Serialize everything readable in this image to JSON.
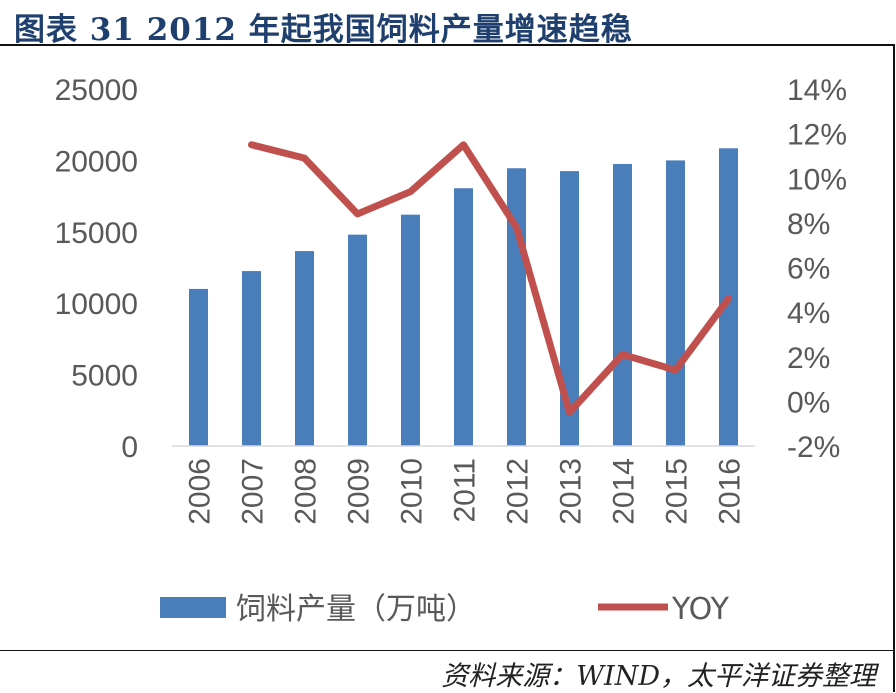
{
  "header": {
    "title": "图表 31 2012 年起我国饲料产量增速趋稳"
  },
  "footer": {
    "source": "资料来源：WIND，太平洋证券整理"
  },
  "chart_data": {
    "type": "bar+line",
    "title": "",
    "categories": [
      "2006",
      "2007",
      "2008",
      "2009",
      "2010",
      "2011",
      "2012",
      "2013",
      "2014",
      "2015",
      "2016"
    ],
    "series": [
      {
        "name": "饲料产量（万吨）",
        "type": "bar",
        "axis": "left",
        "color": "#4a7ebb",
        "values": [
          11000,
          12250,
          13650,
          14800,
          16200,
          18050,
          19450,
          19250,
          19750,
          20000,
          20850
        ]
      },
      {
        "name": "YOY",
        "type": "line",
        "axis": "right",
        "color": "#c0504d",
        "values": [
          null,
          11.5,
          10.9,
          8.4,
          9.4,
          11.5,
          7.8,
          -0.5,
          2.1,
          1.4,
          4.6
        ]
      }
    ],
    "left_axis": {
      "ylim": [
        0,
        25000
      ],
      "ticks": [
        "0",
        "5000",
        "10000",
        "15000",
        "20000",
        "25000"
      ]
    },
    "right_axis": {
      "ylim": [
        -2,
        14
      ],
      "unit": "%",
      "ticks": [
        "-2%",
        "0%",
        "2%",
        "4%",
        "6%",
        "8%",
        "10%",
        "12%",
        "14%"
      ]
    },
    "grid": false,
    "legend": "bottom"
  }
}
